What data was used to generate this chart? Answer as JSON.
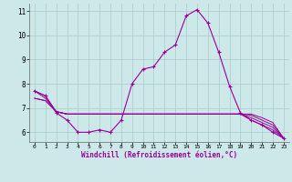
{
  "xlabel": "Windchill (Refroidissement éolien,°C)",
  "bg_color": "#cce8e8",
  "grid_color": "#aacccc",
  "line_color": "#990099",
  "ylim": [
    5.6,
    11.3
  ],
  "xlim": [
    -0.5,
    23.5
  ],
  "yticks": [
    6,
    7,
    8,
    9,
    10,
    11
  ],
  "xticks": [
    0,
    1,
    2,
    3,
    4,
    5,
    6,
    7,
    8,
    9,
    10,
    11,
    12,
    13,
    14,
    15,
    16,
    17,
    18,
    19,
    20,
    21,
    22,
    23
  ],
  "main_line": [
    7.7,
    7.5,
    6.8,
    6.5,
    6.0,
    6.0,
    6.1,
    6.0,
    6.5,
    8.0,
    8.6,
    8.7,
    9.3,
    9.6,
    10.8,
    11.05,
    10.5,
    9.3,
    7.9,
    6.8,
    6.5,
    6.3,
    6.0,
    5.75
  ],
  "line2": [
    7.7,
    7.5,
    6.85,
    6.75,
    6.75,
    6.75,
    6.75,
    6.75,
    6.75,
    6.75,
    6.75,
    6.75,
    6.75,
    6.75,
    6.75,
    6.75,
    6.75,
    6.75,
    6.75,
    6.75,
    6.5,
    6.3,
    6.1,
    5.75
  ],
  "line3": [
    7.7,
    7.4,
    6.85,
    6.75,
    6.75,
    6.75,
    6.75,
    6.75,
    6.75,
    6.75,
    6.75,
    6.75,
    6.75,
    6.75,
    6.75,
    6.75,
    6.75,
    6.75,
    6.75,
    6.75,
    6.6,
    6.4,
    6.2,
    5.75
  ],
  "line4": [
    7.4,
    7.3,
    6.85,
    6.75,
    6.75,
    6.75,
    6.75,
    6.75,
    6.75,
    6.75,
    6.75,
    6.75,
    6.75,
    6.75,
    6.75,
    6.75,
    6.75,
    6.75,
    6.75,
    6.75,
    6.7,
    6.5,
    6.3,
    5.75
  ],
  "line5": [
    7.4,
    7.3,
    6.85,
    6.75,
    6.75,
    6.75,
    6.75,
    6.75,
    6.75,
    6.75,
    6.75,
    6.75,
    6.75,
    6.75,
    6.75,
    6.75,
    6.75,
    6.75,
    6.75,
    6.75,
    6.75,
    6.6,
    6.4,
    5.75
  ]
}
